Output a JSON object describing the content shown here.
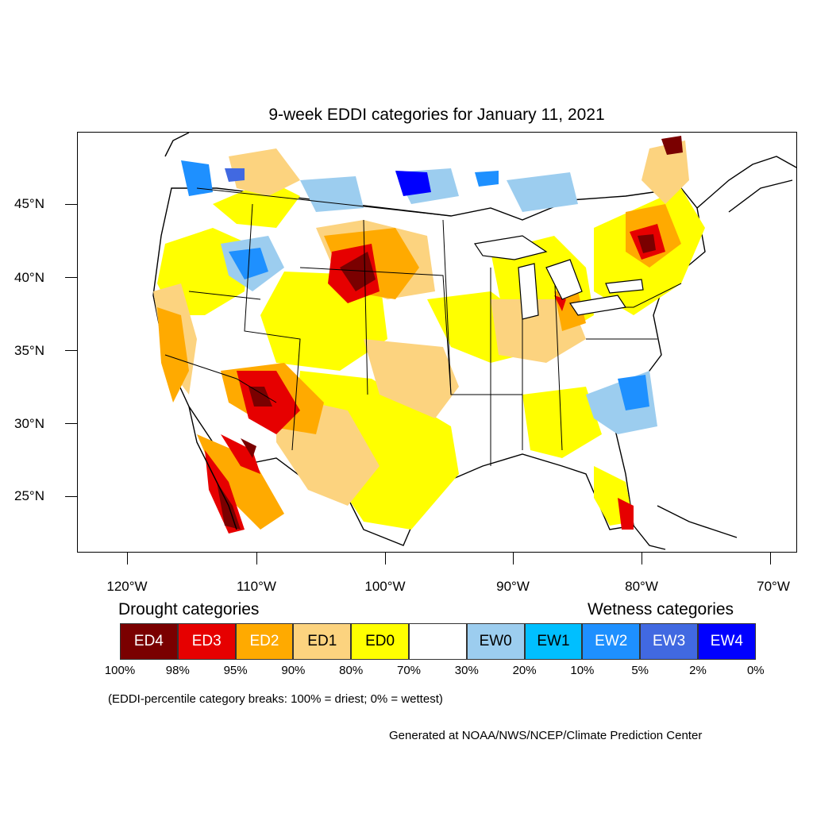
{
  "title": "9-week EDDI categories for January 11, 2021",
  "lat_labels": [
    "45°N",
    "40°N",
    "35°N",
    "30°N",
    "25°N"
  ],
  "lon_labels": [
    "120°W",
    "110°W",
    "100°W",
    "90°W",
    "80°W",
    "70°W"
  ],
  "legend": {
    "drought_heading": "Drought categories",
    "wetness_heading": "Wetness categories",
    "categories": [
      {
        "label": "ED4",
        "color": "#7a0000",
        "text_color": "#ffffff"
      },
      {
        "label": "ED3",
        "color": "#e60000",
        "text_color": "#ffffff"
      },
      {
        "label": "ED2",
        "color": "#ffaa00",
        "text_color": "#ffffff"
      },
      {
        "label": "ED1",
        "color": "#fcd37f",
        "text_color": "#000000"
      },
      {
        "label": "ED0",
        "color": "#ffff00",
        "text_color": "#000000"
      },
      {
        "label": "",
        "color": "#ffffff",
        "text_color": "#000000"
      },
      {
        "label": "EW0",
        "color": "#9ccdef",
        "text_color": "#000000"
      },
      {
        "label": "EW1",
        "color": "#00bfff",
        "text_color": "#000000"
      },
      {
        "label": "EW2",
        "color": "#1e90ff",
        "text_color": "#ffffff"
      },
      {
        "label": "EW3",
        "color": "#4169e1",
        "text_color": "#ffffff"
      },
      {
        "label": "EW4",
        "color": "#0000ff",
        "text_color": "#ffffff"
      }
    ],
    "breaks": [
      "100%",
      "98%",
      "95%",
      "90%",
      "80%",
      "70%",
      "30%",
      "20%",
      "10%",
      "5%",
      "2%",
      "0%"
    ]
  },
  "note": "(EDDI-percentile category breaks: 100% = driest; 0% = wettest)",
  "credit": "Generated at NOAA/NWS/NCEP/Climate Prediction Center"
}
